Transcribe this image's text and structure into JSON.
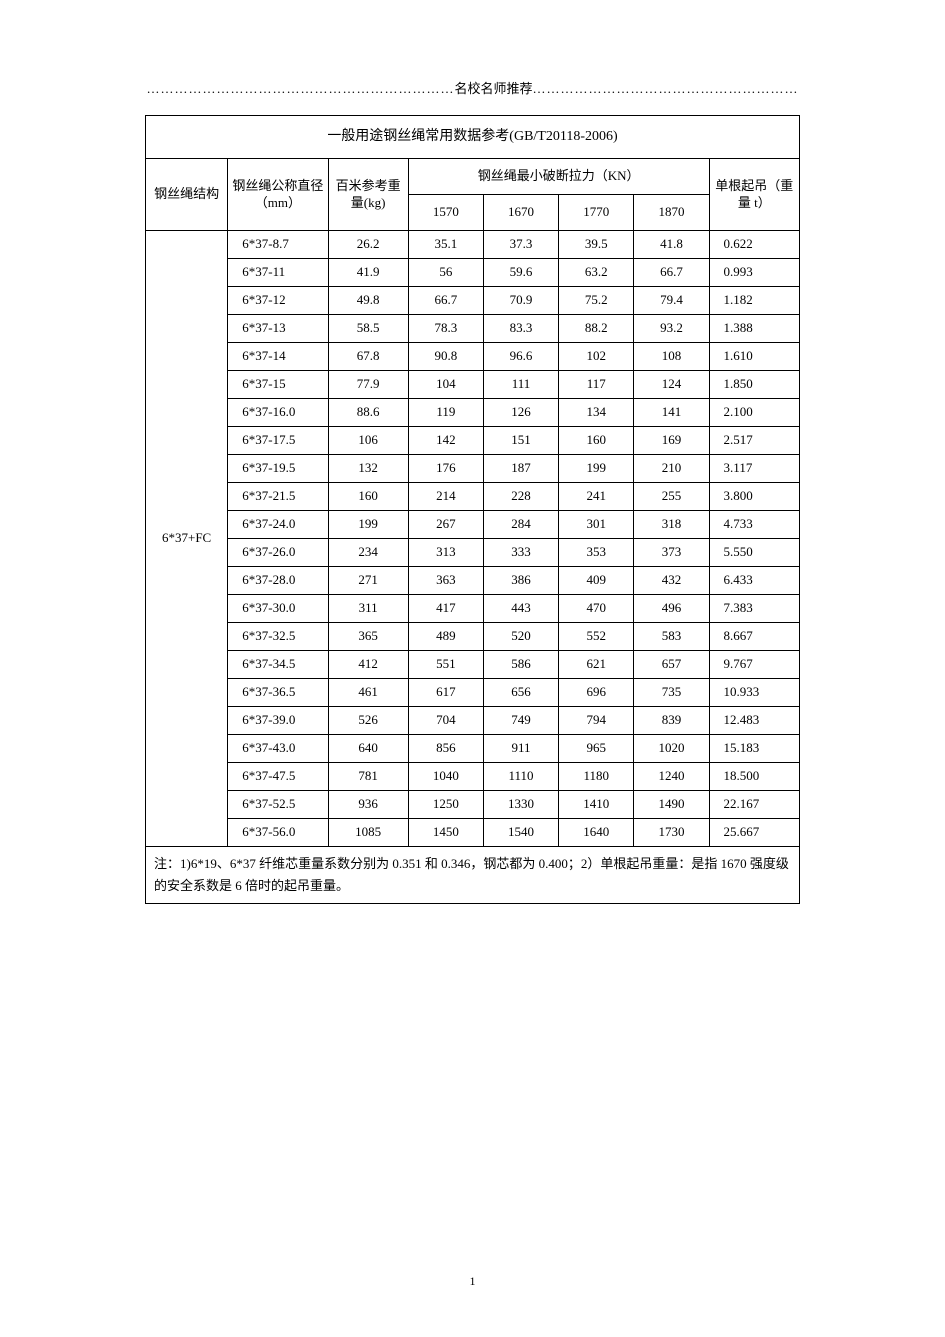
{
  "header": {
    "dots_left": "…………………………………………………………",
    "label": "名校名师推荐",
    "dots_right": "…………………………………………………"
  },
  "table": {
    "title": "一般用途钢丝绳常用数据参考(GB/T20118-2006)",
    "cols": {
      "structure": "钢丝绳结构",
      "diameter": "钢丝绳公称直径（mm）",
      "weight": "百米参考重量(kg)",
      "break_force": "钢丝绳最小破断拉力（KN）",
      "lift": "单根起吊（重量 t）",
      "f1": "1570",
      "f2": "1670",
      "f3": "1770",
      "f4": "1870"
    },
    "structure_label": "6*37+FC",
    "rows": [
      {
        "d": "6*37-8.7",
        "w": "26.2",
        "v1": "35.1",
        "v2": "37.3",
        "v3": "39.5",
        "v4": "41.8",
        "l": "0.622"
      },
      {
        "d": "6*37-11",
        "w": "41.9",
        "v1": "56",
        "v2": "59.6",
        "v3": "63.2",
        "v4": "66.7",
        "l": "0.993"
      },
      {
        "d": "6*37-12",
        "w": "49.8",
        "v1": "66.7",
        "v2": "70.9",
        "v3": "75.2",
        "v4": "79.4",
        "l": "1.182"
      },
      {
        "d": "6*37-13",
        "w": "58.5",
        "v1": "78.3",
        "v2": "83.3",
        "v3": "88.2",
        "v4": "93.2",
        "l": "1.388"
      },
      {
        "d": "6*37-14",
        "w": "67.8",
        "v1": "90.8",
        "v2": "96.6",
        "v3": "102",
        "v4": "108",
        "l": "1.610"
      },
      {
        "d": "6*37-15",
        "w": "77.9",
        "v1": "104",
        "v2": "111",
        "v3": "117",
        "v4": "124",
        "l": "1.850"
      },
      {
        "d": "6*37-16.0",
        "w": "88.6",
        "v1": "119",
        "v2": "126",
        "v3": "134",
        "v4": "141",
        "l": "2.100"
      },
      {
        "d": "6*37-17.5",
        "w": "106",
        "v1": "142",
        "v2": "151",
        "v3": "160",
        "v4": "169",
        "l": "2.517"
      },
      {
        "d": "6*37-19.5",
        "w": "132",
        "v1": "176",
        "v2": "187",
        "v3": "199",
        "v4": "210",
        "l": "3.117"
      },
      {
        "d": "6*37-21.5",
        "w": "160",
        "v1": "214",
        "v2": "228",
        "v3": "241",
        "v4": "255",
        "l": "3.800"
      },
      {
        "d": "6*37-24.0",
        "w": "199",
        "v1": "267",
        "v2": "284",
        "v3": "301",
        "v4": "318",
        "l": "4.733"
      },
      {
        "d": "6*37-26.0",
        "w": "234",
        "v1": "313",
        "v2": "333",
        "v3": "353",
        "v4": "373",
        "l": "5.550"
      },
      {
        "d": "6*37-28.0",
        "w": "271",
        "v1": "363",
        "v2": "386",
        "v3": "409",
        "v4": "432",
        "l": "6.433"
      },
      {
        "d": "6*37-30.0",
        "w": "311",
        "v1": "417",
        "v2": "443",
        "v3": "470",
        "v4": "496",
        "l": "7.383"
      },
      {
        "d": "6*37-32.5",
        "w": "365",
        "v1": "489",
        "v2": "520",
        "v3": "552",
        "v4": "583",
        "l": "8.667"
      },
      {
        "d": "6*37-34.5",
        "w": "412",
        "v1": "551",
        "v2": "586",
        "v3": "621",
        "v4": "657",
        "l": "9.767"
      },
      {
        "d": "6*37-36.5",
        "w": "461",
        "v1": "617",
        "v2": "656",
        "v3": "696",
        "v4": "735",
        "l": "10.933"
      },
      {
        "d": "6*37-39.0",
        "w": "526",
        "v1": "704",
        "v2": "749",
        "v3": "794",
        "v4": "839",
        "l": "12.483"
      },
      {
        "d": "6*37-43.0",
        "w": "640",
        "v1": "856",
        "v2": "911",
        "v3": "965",
        "v4": "1020",
        "l": "15.183"
      },
      {
        "d": "6*37-47.5",
        "w": "781",
        "v1": "1040",
        "v2": "1110",
        "v3": "1180",
        "v4": "1240",
        "l": "18.500"
      },
      {
        "d": "6*37-52.5",
        "w": "936",
        "v1": "1250",
        "v2": "1330",
        "v3": "1410",
        "v4": "1490",
        "l": "22.167"
      },
      {
        "d": "6*37-56.0",
        "w": "1085",
        "v1": "1450",
        "v2": "1540",
        "v3": "1640",
        "v4": "1730",
        "l": "25.667"
      }
    ],
    "note": "注：1)6*19、6*37 纤维芯重量系数分别为 0.351 和 0.346，钢芯都为 0.400；2）单根起吊重量：是指 1670 强度级的安全系数是 6 倍时的起吊重量。"
  },
  "page_number": "1"
}
